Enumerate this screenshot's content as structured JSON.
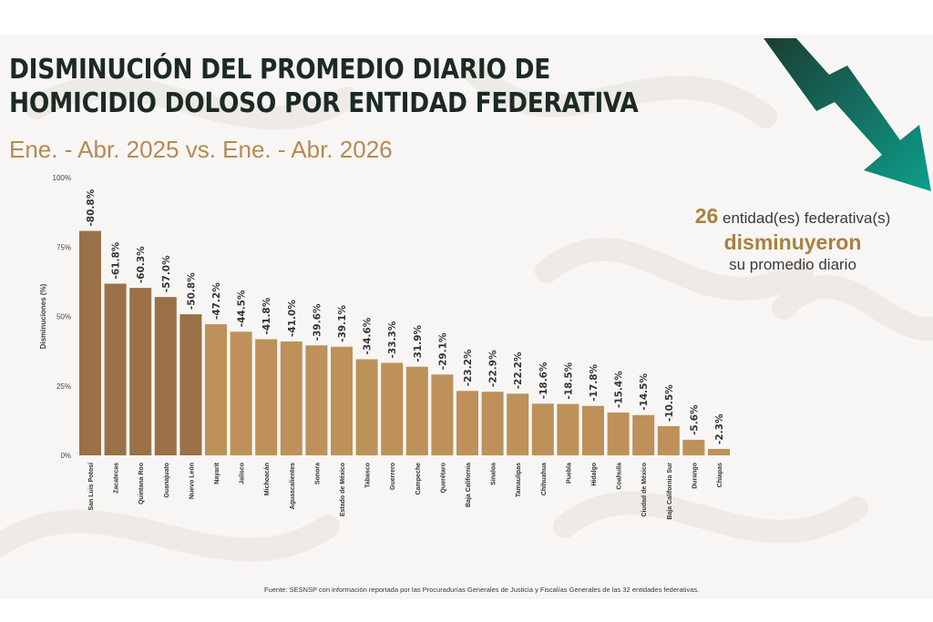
{
  "header": {
    "title_line1": "DISMINUCIÓN DEL PROMEDIO DIARIO DE",
    "title_line2": "HOMICIDIO DOLOSO POR ENTIDAD FEDERATIVA",
    "subtitle": "Ene. - Abr. 2025 vs. Ene. - Abr. 2026"
  },
  "summary": {
    "count": "26",
    "line1_rest": " entidad(es) federativa(s)",
    "line2": "disminuyeron",
    "line3": "su promedio diario"
  },
  "icons": {
    "trend": "down-trend-arrow-icon"
  },
  "colors": {
    "title": "#1c2a25",
    "subtitle": "#b58a52",
    "bar_dark": "#9a7146",
    "bar_light": "#bd9159",
    "arrow_start": "#1c3d33",
    "arrow_end": "#0c9e8c",
    "accent": "#a8813f"
  },
  "chart_data": {
    "type": "bar",
    "title": "",
    "xlabel": "",
    "ylabel": "Disminuciones (%)",
    "ylim": [
      0,
      100
    ],
    "yticks": [
      "0%",
      "25%",
      "50%",
      "75%",
      "100%"
    ],
    "grid": false,
    "categories": [
      "San Luis Potosí",
      "Zacatecas",
      "Quintana Roo",
      "Guanajuato",
      "Nuevo León",
      "Nayarit",
      "Jalisco",
      "Michoacán",
      "Aguascalientes",
      "Sonora",
      "Estado de México",
      "Tabasco",
      "Guerrero",
      "Campeche",
      "Querétaro",
      "Baja California",
      "Sinaloa",
      "Tamaulipas",
      "Chihuahua",
      "Puebla",
      "Hidalgo",
      "Coahuila",
      "Ciudad de México",
      "Baja California Sur",
      "Durango",
      "Chiapas"
    ],
    "values": [
      80.8,
      61.8,
      60.3,
      57.0,
      50.8,
      47.2,
      44.5,
      41.8,
      41.0,
      39.6,
      39.1,
      34.6,
      33.3,
      31.9,
      29.1,
      23.2,
      22.9,
      22.2,
      18.6,
      18.5,
      17.8,
      15.4,
      14.5,
      10.5,
      5.6,
      2.3
    ],
    "labels": [
      "-80.8%",
      "-61.8%",
      "-60.3%",
      "-57.0%",
      "-50.8%",
      "-47.2%",
      "-44.5%",
      "-41.8%",
      "-41.0%",
      "-39.6%",
      "-39.1%",
      "-34.6%",
      "-33.3%",
      "-31.9%",
      "-29.1%",
      "-23.2%",
      "-22.9%",
      "-22.2%",
      "-18.6%",
      "-18.5%",
      "-17.8%",
      "-15.4%",
      "-14.5%",
      "-10.5%",
      "-5.6%",
      "-2.3%"
    ],
    "highlight_count": 5
  },
  "footer": {
    "source": "Fuente: SESNSP con información reportada por las Procuradurías Generales de Justicia y Fiscalías Generales de las 32 entidades federativas."
  }
}
